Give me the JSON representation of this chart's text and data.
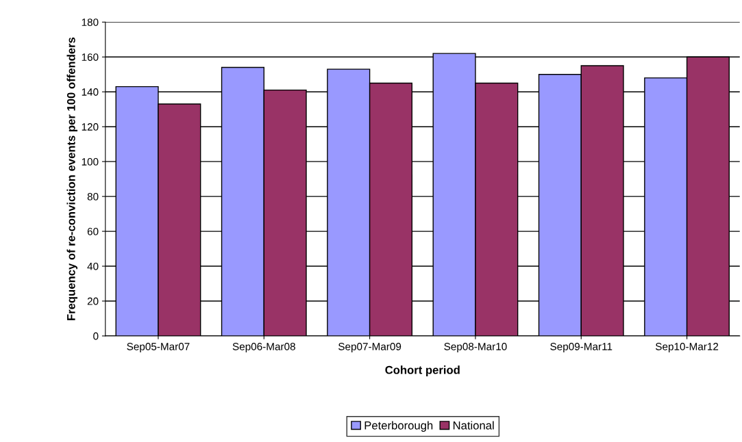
{
  "chart_data": {
    "type": "bar",
    "xlabel": "Cohort period",
    "ylabel": "Frequency of re-conviction events per 100 offenders",
    "categories": [
      "Sep05-Mar07",
      "Sep06-Mar08",
      "Sep07-Mar09",
      "Sep08-Mar10",
      "Sep09-Mar11",
      "Sep10-Mar12"
    ],
    "series": [
      {
        "name": "Peterborough",
        "color": "#9999ff",
        "values": [
          143,
          154,
          153,
          162,
          150,
          148
        ]
      },
      {
        "name": "National",
        "color": "#993366",
        "values": [
          133,
          141,
          145,
          145,
          155,
          160
        ]
      }
    ],
    "ylim": [
      0,
      180
    ],
    "yticks": [
      0,
      20,
      40,
      60,
      80,
      100,
      120,
      140,
      160,
      180
    ],
    "grid": "y",
    "legend": "bottom"
  }
}
